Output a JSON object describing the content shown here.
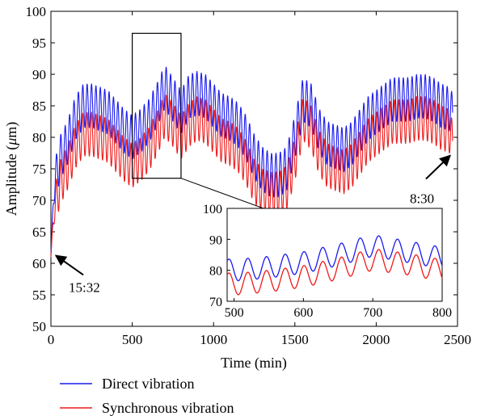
{
  "chart_data": {
    "type": "line",
    "xlabel": "Time (min)",
    "ylabel_prefix": "Amplitude (",
    "ylabel_unit_italic": "μ",
    "ylabel_suffix": "m)",
    "xlim": [
      0,
      2500
    ],
    "ylim": [
      50,
      100
    ],
    "xticks": [
      0,
      500,
      1000,
      1500,
      2000,
      2500
    ],
    "yticks": [
      50,
      55,
      60,
      65,
      70,
      75,
      80,
      85,
      90,
      95,
      100
    ],
    "grid": false,
    "legend_position": "bottom-left",
    "series": [
      {
        "name": "Direct vibration",
        "color": "#1a1aee",
        "x": [
          0,
          15,
          30,
          60,
          100,
          150,
          200,
          250,
          300,
          350,
          400,
          450,
          500,
          550,
          600,
          650,
          700,
          750,
          800,
          850,
          900,
          950,
          1000,
          1050,
          1100,
          1150,
          1200,
          1250,
          1300,
          1350,
          1400,
          1450,
          1500,
          1550,
          1600,
          1650,
          1700,
          1750,
          1800,
          1850,
          1900,
          1950,
          2000,
          2050,
          2100,
          2150,
          2200,
          2250,
          2300,
          2350,
          2400,
          2450,
          2470
        ],
        "values": [
          61.5,
          70,
          74,
          77,
          79,
          83,
          85,
          85,
          84.5,
          84,
          82.5,
          81,
          80,
          81,
          82.5,
          85,
          88,
          86,
          84,
          86.5,
          87,
          86.5,
          85,
          83.5,
          83,
          82,
          80,
          77,
          75,
          74,
          74,
          75,
          80,
          86,
          85,
          81,
          79,
          78.5,
          78,
          79,
          81,
          83,
          84,
          85,
          86,
          86,
          86,
          86.5,
          86.5,
          86,
          85,
          84.5,
          83.5
        ],
        "oscillation_amplitude": 3.5,
        "oscillation_period": 27
      },
      {
        "name": "Synchronous vibration",
        "color": "#ee1a1a",
        "x": [
          0,
          15,
          30,
          60,
          100,
          150,
          200,
          250,
          300,
          350,
          400,
          450,
          500,
          550,
          600,
          650,
          700,
          750,
          800,
          850,
          900,
          950,
          1000,
          1050,
          1100,
          1150,
          1200,
          1250,
          1300,
          1350,
          1400,
          1450,
          1500,
          1550,
          1600,
          1650,
          1700,
          1750,
          1800,
          1850,
          1900,
          1950,
          2000,
          2050,
          2100,
          2150,
          2200,
          2250,
          2300,
          2350,
          2400,
          2450,
          2470
        ],
        "values": [
          61,
          67,
          70,
          73,
          75,
          78.5,
          80.5,
          80.5,
          80,
          79.5,
          78,
          76.5,
          75.5,
          76.5,
          78,
          80.5,
          83.5,
          82,
          80,
          82,
          83,
          82.5,
          81,
          79.5,
          79,
          78,
          76,
          73,
          71.5,
          71,
          71,
          72,
          76.5,
          83,
          81.5,
          77.5,
          75.5,
          75,
          74.5,
          75.5,
          77.5,
          79.5,
          80.5,
          81.5,
          82.5,
          82.5,
          82.5,
          83,
          83,
          82.5,
          81.5,
          81,
          79
        ]
      }
    ],
    "annotations": [
      {
        "text": "15:32",
        "x": 10,
        "y": 61.5
      },
      {
        "text": "8:30",
        "x": 2470,
        "y": 77.5
      }
    ],
    "zoom_box": {
      "x": [
        500,
        800
      ],
      "y": [
        73.5,
        96.5
      ]
    },
    "inset": {
      "xlim": [
        490,
        800
      ],
      "ylim": [
        70,
        100
      ],
      "xticks": [
        500,
        600,
        700,
        800
      ],
      "yticks": [
        70,
        80,
        90,
        100
      ]
    }
  }
}
